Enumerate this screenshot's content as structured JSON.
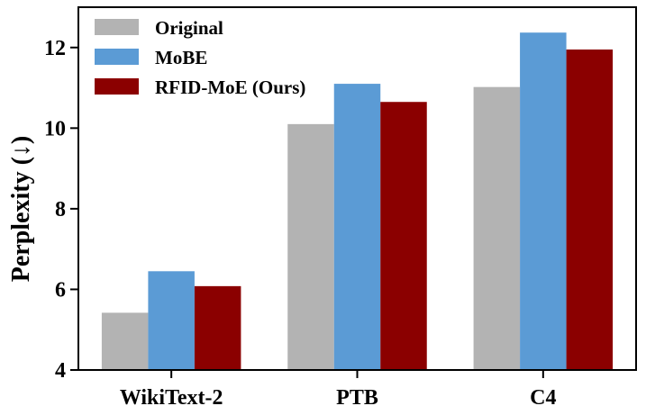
{
  "chart_data": {
    "type": "bar",
    "categories": [
      "WikiText-2",
      "PTB",
      "C4"
    ],
    "series": [
      {
        "name": "Original",
        "color": "#b3b3b3",
        "values": [
          5.42,
          10.1,
          11.02
        ]
      },
      {
        "name": "MoBE",
        "color": "#5b9bd5",
        "values": [
          6.45,
          11.1,
          12.37
        ]
      },
      {
        "name": "RFID-MoE (Ours)",
        "color": "#8b0000",
        "values": [
          6.08,
          10.65,
          11.95
        ]
      }
    ],
    "ylabel": "Perplexity (↓)",
    "ylim": [
      4,
      13
    ],
    "yticks": [
      4,
      6,
      8,
      10,
      12
    ],
    "grid": false,
    "legend_position": "top-left"
  }
}
